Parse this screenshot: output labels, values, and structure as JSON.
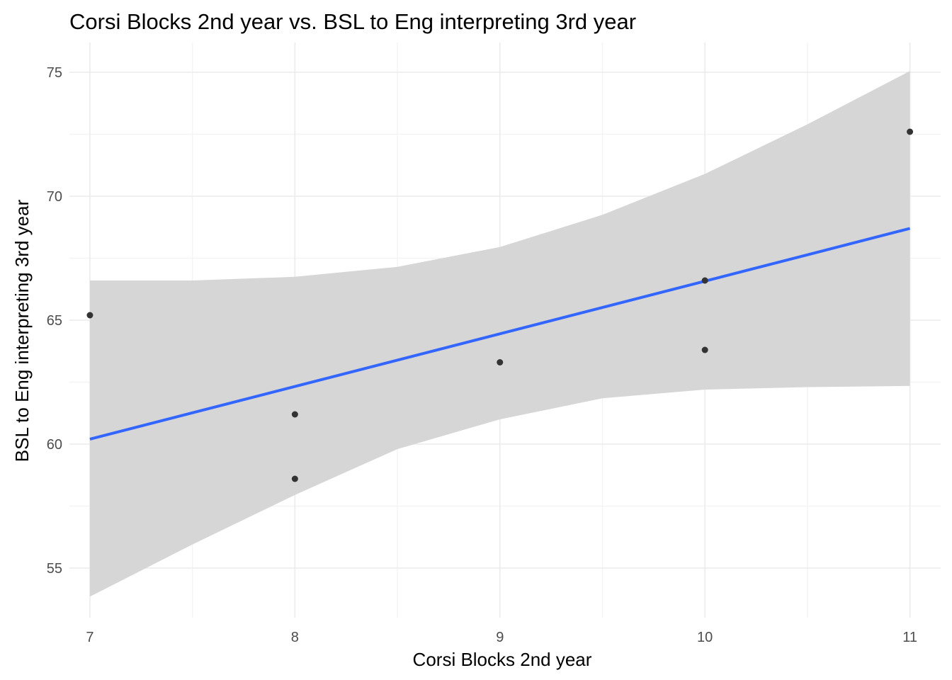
{
  "chart_data": {
    "type": "scatter",
    "title": "Corsi Blocks 2nd year vs. BSL to Eng interpreting 3rd year",
    "xlabel": "Corsi Blocks 2nd year",
    "ylabel": "BSL to Eng interpreting 3rd year",
    "xlim": [
      6.9,
      11.15
    ],
    "ylim": [
      53.0,
      76.2
    ],
    "x_ticks": [
      7,
      8,
      9,
      10,
      11
    ],
    "y_ticks": [
      55,
      60,
      65,
      70,
      75
    ],
    "x_minor": [
      7.5,
      8.5,
      9.5,
      10.5
    ],
    "y_minor": [
      57.5,
      62.5,
      67.5,
      72.5
    ],
    "grid": true,
    "points": [
      {
        "x": 7,
        "y": 65.2
      },
      {
        "x": 8,
        "y": 61.2
      },
      {
        "x": 8,
        "y": 58.6
      },
      {
        "x": 9,
        "y": 63.3
      },
      {
        "x": 10,
        "y": 66.6
      },
      {
        "x": 10,
        "y": 63.8
      },
      {
        "x": 11,
        "y": 72.6
      }
    ],
    "fit_line": {
      "x": [
        7,
        11
      ],
      "y": [
        60.2,
        68.7
      ]
    },
    "confidence_band": {
      "x": [
        7,
        7.5,
        8,
        8.5,
        9,
        9.5,
        10,
        10.5,
        11
      ],
      "upper": [
        66.6,
        66.6,
        66.75,
        67.15,
        67.95,
        69.25,
        70.9,
        72.9,
        75.05
      ],
      "lower": [
        53.85,
        55.95,
        57.95,
        59.8,
        61.0,
        61.85,
        62.2,
        62.3,
        62.35
      ]
    },
    "colors": {
      "line": "#3366ff",
      "band": "#d6d6d6",
      "point": "#333333",
      "grid_major": "#ebebeb",
      "grid_minor": "#f4f4f4"
    }
  }
}
